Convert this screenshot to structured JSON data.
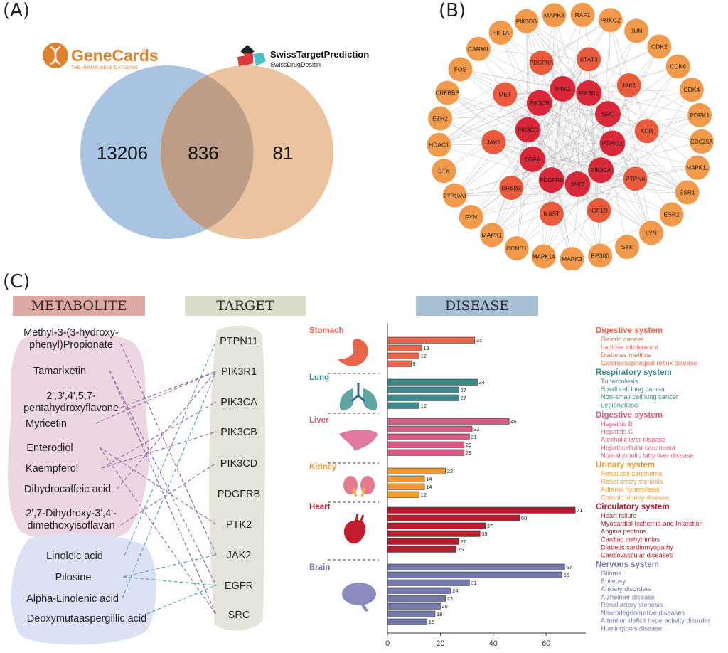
{
  "panel_labels": {
    "a": "(A)",
    "b": "(B)",
    "c": "(C)"
  },
  "venn": {
    "left_count": "13206",
    "overlap_count": "836",
    "right_count": "81",
    "left_color": "#a9c4e2",
    "right_color": "#e8b98d",
    "genecards": {
      "name": "GeneCards",
      "reg": "®",
      "tagline": "THE HUMAN GENE DATABASE",
      "color": "#e0822c"
    },
    "swiss": {
      "name": "SwissTargetPrediction",
      "sub": "SwissDrugDesign"
    }
  },
  "network": {
    "outer_nodes": [
      "MAPK8",
      "RAF1",
      "PRKCZ",
      "JUN",
      "CDK2",
      "CDK6",
      "CDK4",
      "PDPK1",
      "CDC25A",
      "MAPK11",
      "ESR1",
      "ESR2",
      "LYN",
      "SYK",
      "EP300",
      "MAPK3",
      "MAPK14",
      "CCND1",
      "MAPK1",
      "FYN",
      "CYP19A1",
      "BTK",
      "HDAC1",
      "EZH2",
      "CREBBP",
      "FOS",
      "CARM1",
      "HIF1A",
      "PIK3CG"
    ],
    "middle_nodes": [
      "PDGFRA",
      "STAT3",
      "JAK1",
      "KDR",
      "PTPN6",
      "IGF1R",
      "IL6ST",
      "ERBB2",
      "JAK3",
      "MET"
    ],
    "inner_nodes": [
      "PTK2",
      "PIK3R1",
      "SRC",
      "PTPN11",
      "PIK3CA",
      "JAK2",
      "PDGFRB",
      "EGFR",
      "PIK3CD",
      "PIK3CB"
    ],
    "colors": {
      "outer": "#f19a4c",
      "middle": "#ea5a3c",
      "inner": "#d8283a"
    }
  },
  "headers": {
    "metabolite": "METABOLITE",
    "target": "TARGET",
    "disease": "DISEASE"
  },
  "metabolites": [
    {
      "lines": [
        "Methyl-3-(3-hydroxy-",
        "phenyl)Propionate"
      ]
    },
    {
      "lines": [
        "Tamarixetin"
      ]
    },
    {
      "lines": [
        "2',3',4',5,7-",
        "pentahydroxyflavone"
      ]
    },
    {
      "lines": [
        "Myricetin"
      ]
    },
    {
      "lines": [
        "Enterodiol"
      ]
    },
    {
      "lines": [
        "Kaempferol"
      ]
    },
    {
      "lines": [
        "Dihydrocaffeic acid"
      ]
    },
    {
      "lines": [
        "2',7-Dihydroxy-3',4'-",
        "dimethoxyisoflavan"
      ]
    },
    {
      "lines": [
        "Linoleic acid"
      ]
    },
    {
      "lines": [
        "Pilosine"
      ]
    },
    {
      "lines": [
        "Alpha-Linolenic acid"
      ]
    },
    {
      "lines": [
        "Deoxymutaaspergillic acid"
      ]
    }
  ],
  "targets": [
    "PTPN11",
    "PIK3R1",
    "PIK3CA",
    "PIK3CB",
    "PIK3CD",
    "PDGFRB",
    "PTK2",
    "JAK2",
    "EGFR",
    "SRC"
  ],
  "chart_data": {
    "type": "bar",
    "orientation": "horizontal",
    "title": "DISEASE",
    "xlim": [
      0,
      75
    ],
    "xticks": [
      0,
      20,
      40,
      60
    ],
    "groups": [
      {
        "organ": "Stomach",
        "system": "Digestive system",
        "color": "#e8654a",
        "diseases": [
          "Gastric cancer",
          "Lactose intolerance",
          "Diabetes mellitus",
          "Gastroesophageal reflux disease"
        ],
        "values": [
          33,
          13,
          12,
          9
        ]
      },
      {
        "organ": "Lung",
        "system": "Respiratory system",
        "color": "#3d8a8c",
        "diseases": [
          "Tuberculosis",
          "Small cell lung cancer",
          "Non-small cell lung cancer",
          "Legionellosis"
        ],
        "values": [
          34,
          27,
          27,
          12
        ]
      },
      {
        "organ": "Liver",
        "system": "Digestive system",
        "color": "#d85a86",
        "diseases": [
          "Hepatitis B",
          "Hepatitis C",
          "Alcoholic liver disease",
          "Hepatocellular carcinoma",
          "Non-alcoholic fatty liver disease"
        ],
        "values": [
          46,
          32,
          31,
          29,
          29
        ]
      },
      {
        "organ": "Kidney",
        "system": "Urinary system",
        "color": "#ee9a32",
        "diseases": [
          "Renal cell carcinoma",
          "Renal artery stenosis",
          "Adrenal hyperplasia",
          "Chronic kidney disease"
        ],
        "values": [
          22,
          14,
          14,
          12
        ]
      },
      {
        "organ": "Heart",
        "system": "Circulatory system",
        "color": "#b91c2c",
        "diseases": [
          "Heart failure",
          "Myocardial Ischemia and Infarction",
          "Angina pectoris",
          "Cardiac arrhythmias",
          "Diabetic cardiomyopathy",
          "Cardiovascular diseases"
        ],
        "values": [
          71,
          50,
          37,
          35,
          27,
          26
        ]
      },
      {
        "organ": "Brain",
        "system": "Nervous system",
        "color": "#7378ad",
        "diseases": [
          "Glioma",
          "Epilepsy",
          "Anxiety disorders",
          "Alzheimer disease",
          "Renal artery stenosis",
          "Neurodegenerative diseases",
          "Attention deficit hyperactivity disorder",
          "Huntington's disease"
        ],
        "values": [
          67,
          66,
          31,
          24,
          22,
          20,
          18,
          15
        ]
      }
    ]
  }
}
